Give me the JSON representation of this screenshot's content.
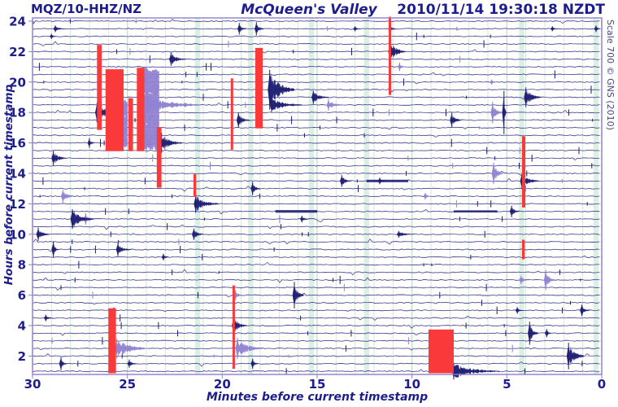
{
  "header": {
    "station": "MQZ/10-HHZ/NZ",
    "title": "McQueen's Valley",
    "timestamp": "2010/11/14 19:30:18 NZDT",
    "scale_credit": "Scale 700 © GNS (2010)"
  },
  "axes": {
    "y_label": "Hours before current timestamp",
    "x_label": "Minutes before current timestamp",
    "y_ticks": [
      24,
      22,
      20,
      18,
      16,
      14,
      12,
      10,
      8,
      6,
      4,
      2
    ],
    "x_ticks": [
      30,
      25,
      20,
      15,
      10,
      5,
      0
    ]
  },
  "colors": {
    "text": "#1d1d8c",
    "trace_navy": "#23237c",
    "event_navy": "#1d1d72",
    "purple": "#9183d2",
    "red": "#fa3a3a",
    "grid_green": "#c5e0c9",
    "gap_band": "#dcefe4",
    "row_base": "#bcb0e0",
    "border": "#8f7ed0"
  },
  "chart_data": {
    "type": "seismogram-helicorder",
    "station": "MQZ/10-HHZ/NZ",
    "scale": 700,
    "minutes_per_line": 30,
    "lines": 47,
    "hours_span": 24,
    "events_format": "[minutes_before, hours_before, amplitude_px, coda_minutes]",
    "blocks_format": "[min_start, min_end, hour_start, hour_end]",
    "gap_bands_minutes": [
      21.3,
      18.5,
      15.3,
      12.4,
      4.22,
      0.3
    ],
    "clipping_blocks": [
      [
        26.6,
        26.35,
        22.2,
        17.1
      ],
      [
        26.15,
        25.2,
        20.6,
        15.7
      ],
      [
        24.95,
        24.7,
        18.7,
        15.7
      ],
      [
        24.5,
        24.1,
        20.7,
        15.7
      ],
      [
        23.45,
        23.2,
        16.8,
        13.3
      ],
      [
        21.52,
        21.38,
        13.7,
        12.7
      ],
      [
        19.55,
        19.42,
        20.0,
        15.8
      ],
      [
        18.26,
        17.87,
        22.0,
        17.2
      ],
      [
        11.23,
        11.1,
        24.05,
        19.4
      ],
      [
        19.46,
        19.33,
        6.4,
        1.4
      ],
      [
        26.0,
        25.6,
        4.9,
        0.8
      ],
      [
        9.13,
        7.8,
        3.5,
        0.8
      ],
      [
        4.2,
        4.03,
        16.2,
        12.0
      ],
      [
        4.2,
        4.06,
        9.4,
        8.6
      ]
    ],
    "events_navy": [
      [
        28.8,
        23.5,
        4,
        0.5
      ],
      [
        19.1,
        23.5,
        7,
        0.35
      ],
      [
        18.2,
        23.5,
        8,
        0.4
      ],
      [
        11.15,
        23.5,
        5,
        0.3
      ],
      [
        2.6,
        23.5,
        3,
        0.3
      ],
      [
        0.3,
        23.5,
        4,
        0.25
      ],
      [
        29.0,
        23.0,
        3,
        0.3
      ],
      [
        13.0,
        23.5,
        3,
        0.3
      ],
      [
        22.7,
        21.5,
        8,
        0.8
      ],
      [
        11.15,
        22.0,
        14,
        0.8
      ],
      [
        26.6,
        18.0,
        12,
        1.3
      ],
      [
        17.5,
        19.5,
        24,
        1.3
      ],
      [
        17.4,
        18.5,
        9,
        1.6
      ],
      [
        15.2,
        19.0,
        8,
        0.8
      ],
      [
        19.15,
        17.5,
        9,
        0.6
      ],
      [
        7.9,
        17.5,
        9,
        0.5
      ],
      [
        4.0,
        19.0,
        12,
        0.8
      ],
      [
        5.15,
        18.0,
        26,
        0.12
      ],
      [
        28.9,
        15.0,
        9,
        0.7
      ],
      [
        27.0,
        16.0,
        6,
        0.25
      ],
      [
        23.2,
        16.0,
        12,
        1.1
      ],
      [
        21.4,
        12.0,
        11,
        1.2
      ],
      [
        18.4,
        13.0,
        8,
        0.4
      ],
      [
        13.7,
        13.5,
        7,
        0.5
      ],
      [
        11.7,
        13.5,
        4,
        0.3
      ],
      [
        4.2,
        13.5,
        10,
        0.9
      ],
      [
        4.75,
        11.5,
        7,
        0.4
      ],
      [
        27.9,
        11.0,
        12,
        1.1
      ],
      [
        29.7,
        10.0,
        8,
        0.6
      ],
      [
        28.9,
        9.0,
        10,
        0.25
      ],
      [
        25.5,
        9.0,
        8,
        0.7
      ],
      [
        21.5,
        10.0,
        7,
        0.5
      ],
      [
        23.1,
        8.5,
        4,
        0.3
      ],
      [
        15.8,
        11.0,
        4,
        0.4
      ],
      [
        10.7,
        10.0,
        4,
        0.8
      ],
      [
        16.2,
        6.0,
        16,
        0.5
      ],
      [
        19.4,
        4.0,
        11,
        0.7
      ],
      [
        29.3,
        4.5,
        4,
        0.4
      ],
      [
        28.5,
        1.5,
        8,
        0.3
      ],
      [
        24.9,
        1.5,
        5,
        0.4
      ],
      [
        18.4,
        1.5,
        6,
        0.3
      ],
      [
        3.8,
        3.5,
        14,
        0.45
      ],
      [
        2.9,
        3.5,
        5,
        0.25
      ],
      [
        1.75,
        2.0,
        16,
        0.8
      ],
      [
        1.05,
        5.0,
        7,
        0.4
      ],
      [
        4.45,
        5.0,
        4,
        0.3
      ],
      [
        7.8,
        0.5,
        10,
        2.4
      ]
    ],
    "events_purple": [
      [
        24.0,
        18.5,
        14,
        2.8
      ],
      [
        25.35,
        18.0,
        13,
        0.3
      ],
      [
        24.0,
        16.0,
        12,
        0.5
      ],
      [
        10.65,
        21.0,
        5,
        0.3
      ],
      [
        5.75,
        18.0,
        13,
        0.5
      ],
      [
        5.7,
        14.0,
        13,
        0.5
      ],
      [
        14.4,
        18.5,
        7,
        0.8
      ],
      [
        28.4,
        12.5,
        8,
        0.6
      ],
      [
        27.2,
        11.0,
        7,
        0.5
      ],
      [
        9.3,
        12.5,
        4,
        0.3
      ],
      [
        5.8,
        20.0,
        3,
        0.3
      ],
      [
        2.95,
        7.0,
        12,
        0.5
      ],
      [
        19.2,
        2.5,
        13,
        1.3
      ],
      [
        25.55,
        2.5,
        12,
        1.8
      ],
      [
        4.25,
        7.0,
        5,
        0.4
      ],
      [
        19.3,
        6.0,
        6,
        0.4
      ]
    ],
    "burst_zones": [
      [
        24.15,
        23.3,
        20.5,
        15.8,
        9
      ],
      [
        25.2,
        24.95,
        18.3,
        15.8,
        9
      ]
    ],
    "noise_segments": [
      [
        17.2,
        15.0,
        11.5,
        1.6
      ],
      [
        7.8,
        5.5,
        11.5,
        1.3
      ],
      [
        12.4,
        10.2,
        13.5,
        1.5
      ]
    ]
  }
}
